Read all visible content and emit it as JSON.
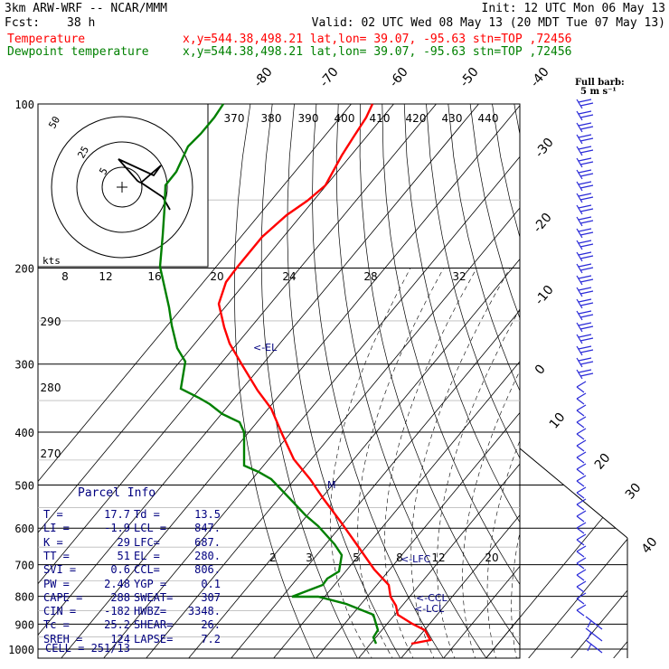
{
  "header": {
    "model": "3km ARW-WRF -- NCAR/MMM",
    "init": "Init: 12 UTC Mon 06 May 13",
    "fcst_label": "Fcst:",
    "fcst_value": "38 h",
    "valid": "Valid: 02 UTC Wed 08 May 13 (20 MDT Tue 07 May 13)",
    "temp_label": "Temperature",
    "temp_info": "x,y=544.38,498.21   lat,lon= 39.07, -95.63  stn=TOP ,72456",
    "dew_label": "Dewpoint temperature",
    "dew_info": "x,y=544.38,498.21   lat,lon= 39.07, -95.63  stn=TOP ,72456"
  },
  "colors": {
    "temperature": "#ff0000",
    "dewpoint": "#008000",
    "text": "#000000",
    "label_blue": "#000080",
    "barb": "#2a2ad8"
  },
  "chart_data": {
    "type": "line",
    "y_scale": "log-pressure",
    "pressure_levels": [
      100,
      200,
      300,
      400,
      500,
      600,
      700,
      800,
      900,
      1000
    ],
    "temperature_c": {
      "pressure_hpa": [
        1000,
        975,
        950,
        925,
        900,
        875,
        850,
        800,
        750,
        700,
        650,
        600,
        550,
        500,
        450,
        400,
        350,
        300,
        275,
        250,
        225,
        200,
        175,
        150,
        125,
        100
      ],
      "values": [
        17.7,
        17,
        17.5,
        16.0,
        13.0,
        11.0,
        9.5,
        7.0,
        3.5,
        0.0,
        -3.5,
        -7.0,
        -11.5,
        -16.5,
        -22.5,
        -29.0,
        -34.5,
        -43.0,
        -48.5,
        -54.5,
        -58.5,
        -57.0,
        -55.0,
        -57.0,
        -56.0,
        -54.0
      ]
    },
    "dewpoint_c": {
      "pressure_hpa": [
        1000,
        975,
        950,
        925,
        900,
        875,
        850,
        800,
        750,
        700,
        650,
        600,
        550,
        500,
        450,
        400,
        350,
        300,
        275,
        250,
        225,
        200,
        175,
        150,
        125,
        100
      ],
      "values": [
        13.5,
        13.0,
        12.5,
        12.0,
        8.0,
        4.0,
        -2.0,
        -4.0,
        -3.0,
        -4.0,
        -8.0,
        -14.0,
        -20.0,
        -27.0,
        -36.0,
        -34.0,
        -45.0,
        -46.0,
        -49.0,
        -56.0,
        -63.0,
        -69.0,
        -68.0,
        -72.0,
        -70.0,
        -66.0
      ]
    },
    "isotherm_labels": [
      "-80",
      "-70",
      "-60",
      "-50",
      "-40",
      "-30",
      "-20",
      "-10",
      "0",
      "10",
      "20",
      "30",
      "40"
    ],
    "theta_labels": [
      "370",
      "380",
      "390",
      "400",
      "410",
      "420",
      "430",
      "440",
      "290",
      "280",
      "270"
    ],
    "mixing_ratio_labels": [
      "2",
      "3",
      "5",
      "8",
      "12",
      "20"
    ],
    "upper_mixing_labels": [
      "8",
      "12",
      "16",
      "20",
      "24",
      "28",
      "32"
    ],
    "hodograph_labels": [
      "25",
      "5",
      "kts"
    ],
    "level_markers": [
      "EL",
      "M",
      "LFC",
      "CCL",
      "LCL"
    ],
    "barb_legend": [
      "Full barb:",
      "5 m s⁻¹"
    ]
  },
  "parcel_info": {
    "title": "Parcel Info",
    "rows": [
      [
        "T  =",
        "17.7",
        "Td =",
        "13.5"
      ],
      [
        "LI =",
        "-1.9",
        "LCL =",
        "847."
      ],
      [
        "K  =",
        "29",
        "LFC=",
        "687."
      ],
      [
        "TT =",
        "51",
        "EL =",
        "280."
      ],
      [
        "SVI =",
        "0.6",
        "CCL=",
        "806."
      ],
      [
        "PW =",
        "2.48",
        "YGP =",
        "0.1"
      ],
      [
        "CAPE =",
        "288",
        "SWEAT=",
        "307"
      ],
      [
        "CIN =",
        "-182",
        "HWBZ=",
        "3348."
      ],
      [
        "Tc =",
        "25.2",
        "SHEAR=",
        "26."
      ],
      [
        "SREH =",
        "124",
        "LAPSE=",
        "7.2"
      ]
    ],
    "cell": "CELL = 251/13"
  }
}
